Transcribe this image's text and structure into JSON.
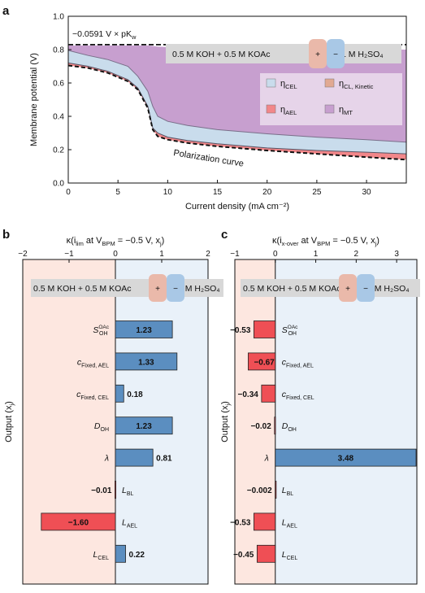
{
  "chart_data": [
    {
      "panel": "a",
      "type": "area",
      "xlabel": "Current density (mA cm⁻²)",
      "ylabel": "Membrane potential (V)",
      "xlim": [
        0,
        34
      ],
      "ylim": [
        0,
        1.0
      ],
      "xticks": [
        0,
        5,
        10,
        15,
        20,
        25,
        30
      ],
      "yticks": [
        0,
        0.2,
        0.4,
        0.6,
        0.8,
        1.0
      ],
      "reference_line": {
        "label": "−0.0591 V × pK",
        "label_sub": "w",
        "y": 0.83
      },
      "annotation": "Polarization curve",
      "condition": {
        "left": "0.5 M KOH + 0.5 M KOAc",
        "right": "1 M H₂SO₄",
        "plus": "+",
        "minus": "−"
      },
      "legend": [
        {
          "name": "η",
          "sub": "CEL",
          "color": "#c9dcec"
        },
        {
          "name": "η",
          "sub": "CL, Kinetic",
          "color": "#e1a992"
        },
        {
          "name": "η",
          "sub": "AEL",
          "color": "#f2878a"
        },
        {
          "name": "η",
          "sub": "MT",
          "color": "#c79fcf"
        }
      ],
      "curves": {
        "x": [
          0,
          2,
          4,
          6,
          7,
          8,
          8.5,
          9,
          10,
          12,
          15,
          20,
          25,
          30,
          34
        ],
        "equilibrium": [
          0.825,
          0.825,
          0.825,
          0.825,
          0.825,
          0.825,
          0.825,
          0.825,
          0.825,
          0.825,
          0.825,
          0.825,
          0.825,
          0.825,
          0.825
        ],
        "mt_lower": [
          0.825,
          0.825,
          0.825,
          0.825,
          0.825,
          0.825,
          0.822,
          0.818,
          0.815,
          0.812,
          0.81,
          0.807,
          0.805,
          0.803,
          0.8
        ],
        "cel_lower": [
          0.795,
          0.765,
          0.74,
          0.7,
          0.64,
          0.55,
          0.46,
          0.4,
          0.37,
          0.345,
          0.32,
          0.295,
          0.275,
          0.26,
          0.245
        ],
        "ael_upper": [
          0.72,
          0.7,
          0.67,
          0.62,
          0.57,
          0.46,
          0.33,
          0.3,
          0.275,
          0.255,
          0.235,
          0.21,
          0.195,
          0.185,
          0.175
        ],
        "polarization": [
          0.705,
          0.69,
          0.66,
          0.61,
          0.56,
          0.45,
          0.32,
          0.28,
          0.26,
          0.24,
          0.22,
          0.195,
          0.175,
          0.155,
          0.14
        ]
      }
    },
    {
      "panel": "b",
      "type": "bar",
      "title": "κ(i",
      "title_sub": "lim",
      "title_rest": " at V",
      "title_sub2": "BPM",
      "title_end": " = −0.5 V, x",
      "title_sub3": "j",
      "title_close": ")",
      "ylabel": "Output (x",
      "ylabel_sub": "j",
      "ylabel_close": ")",
      "xlim": [
        -2,
        2
      ],
      "xticks": [
        -2,
        -1,
        0,
        1,
        2
      ],
      "condition": {
        "left": "0.5 M KOH + 0.5 M KOAc",
        "right": "1 M H₂SO₄",
        "plus": "+",
        "minus": "−"
      },
      "categories": [
        {
          "main": "S",
          "sub": "OH",
          "sup": "OAc"
        },
        {
          "main": "c",
          "sub": "Fixed, AEL",
          "sup": ""
        },
        {
          "main": "c",
          "sub": "Fixed, CEL",
          "sup": ""
        },
        {
          "main": "D",
          "sub": "OH",
          "sup": ""
        },
        {
          "main": "λ",
          "sub": "",
          "sup": ""
        },
        {
          "main": "L",
          "sub": "BL",
          "sup": ""
        },
        {
          "main": "L",
          "sub": "AEL",
          "sup": ""
        },
        {
          "main": "L",
          "sub": "CEL",
          "sup": ""
        }
      ],
      "values": [
        1.23,
        1.33,
        0.18,
        1.23,
        0.81,
        -0.01,
        -1.6,
        0.22
      ],
      "labels": [
        "1.23",
        "1.33",
        "0.18",
        "1.23",
        "0.81",
        "−0.01",
        "−1.60",
        "0.22"
      ],
      "colors": {
        "positive": "#5b8ec0",
        "negative": "#ef4f55",
        "bg_negative": "#fde7e0",
        "bg_positive": "#e9f1f9"
      }
    },
    {
      "panel": "c",
      "type": "bar",
      "title": "κ(i",
      "title_sub": "x-over",
      "title_rest": " at V",
      "title_sub2": "BPM",
      "title_end": " = −0.5 V, x",
      "title_sub3": "j",
      "title_close": ")",
      "ylabel": "Output (x",
      "ylabel_sub": "j",
      "ylabel_close": ")",
      "xlim": [
        -1,
        3.5
      ],
      "xticks": [
        -1,
        0,
        1,
        2,
        3
      ],
      "condition": {
        "left": "0.5 M KOH + 0.5 M KOAc",
        "right": "1 M H₂SO₄",
        "plus": "+",
        "minus": "−"
      },
      "categories": [
        {
          "main": "S",
          "sub": "OH",
          "sup": "OAc"
        },
        {
          "main": "c",
          "sub": "Fixed, AEL",
          "sup": ""
        },
        {
          "main": "c",
          "sub": "Fixed, CEL",
          "sup": ""
        },
        {
          "main": "D",
          "sub": "OH",
          "sup": ""
        },
        {
          "main": "λ",
          "sub": "",
          "sup": ""
        },
        {
          "main": "L",
          "sub": "BL",
          "sup": ""
        },
        {
          "main": "L",
          "sub": "AEL",
          "sup": ""
        },
        {
          "main": "L",
          "sub": "CEL",
          "sup": ""
        }
      ],
      "values": [
        -0.53,
        -0.67,
        -0.34,
        -0.02,
        3.48,
        -0.002,
        -0.53,
        -0.45
      ],
      "labels": [
        "−0.53",
        "−0.67",
        "−0.34",
        "−0.02",
        "3.48",
        "−0.002",
        "−0.53",
        "−0.45"
      ],
      "colors": {
        "positive": "#5b8ec0",
        "negative": "#ef4f55",
        "bg_negative": "#fde7e0",
        "bg_positive": "#e9f1f9"
      }
    }
  ],
  "panel_labels": {
    "a": "a",
    "b": "b",
    "c": "c"
  }
}
